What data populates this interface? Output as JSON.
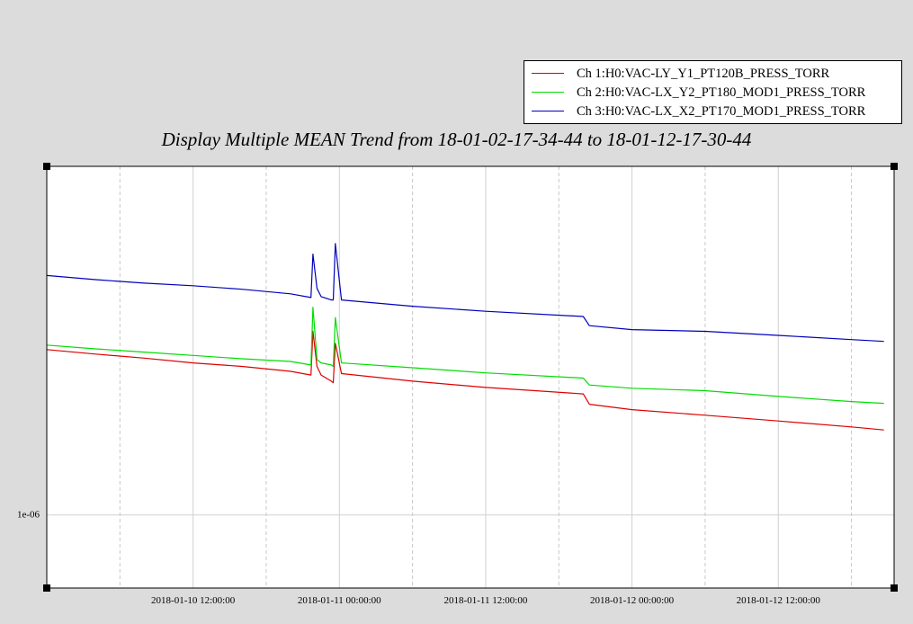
{
  "chart_data": {
    "type": "line",
    "title": "Display Multiple MEAN Trend from 18-01-02-17-34-44 to 18-01-12-17-30-44",
    "xlabel": "",
    "ylabel": "",
    "x_ticks": [
      "2018-01-10 12:00:00",
      "2018-01-11 00:00:00",
      "2018-01-11 12:00:00",
      "2018-01-12 00:00:00",
      "2018-01-12 12:00:00"
    ],
    "xlim": [
      "2018-01-10 00:00:00",
      "2018-01-12 21:30:00"
    ],
    "y_scale": "log",
    "y_ticks": [
      "1e-06"
    ],
    "ylim": [
      6.5e-07,
      7.8e-06
    ],
    "grid": true,
    "legend_position": "top-right",
    "series": [
      {
        "name": "Ch 1:H0:VAC-LY_Y1_PT120B_PRESS_TORR",
        "color": "#dd0000",
        "points": [
          [
            "2018-01-10 00:00:00",
            2.65e-06
          ],
          [
            "2018-01-10 04:00:00",
            2.58e-06
          ],
          [
            "2018-01-10 08:00:00",
            2.52e-06
          ],
          [
            "2018-01-10 12:00:00",
            2.45e-06
          ],
          [
            "2018-01-10 16:00:00",
            2.4e-06
          ],
          [
            "2018-01-10 20:00:00",
            2.33e-06
          ],
          [
            "2018-01-10 21:40:00",
            2.28e-06
          ],
          [
            "2018-01-10 21:50:00",
            2.95e-06
          ],
          [
            "2018-01-10 22:10:00",
            2.4e-06
          ],
          [
            "2018-01-10 22:30:00",
            2.28e-06
          ],
          [
            "2018-01-10 23:20:00",
            2.2e-06
          ],
          [
            "2018-01-10 23:30:00",
            2.18e-06
          ],
          [
            "2018-01-10 23:40:00",
            2.75e-06
          ],
          [
            "2018-01-11 00:10:00",
            2.3e-06
          ],
          [
            "2018-01-11 06:00:00",
            2.2e-06
          ],
          [
            "2018-01-11 12:00:00",
            2.12e-06
          ],
          [
            "2018-01-11 20:00:00",
            2.04e-06
          ],
          [
            "2018-01-11 20:30:00",
            1.92e-06
          ],
          [
            "2018-01-12 00:00:00",
            1.86e-06
          ],
          [
            "2018-01-12 06:00:00",
            1.8e-06
          ],
          [
            "2018-01-12 12:00:00",
            1.74e-06
          ],
          [
            "2018-01-12 18:00:00",
            1.68e-06
          ],
          [
            "2018-01-12 20:40:00",
            1.65e-06
          ]
        ]
      },
      {
        "name": "Ch 2:H0:VAC-LX_Y2_PT180_MOD1_PRESS_TORR",
        "color": "#00dd00",
        "points": [
          [
            "2018-01-10 00:00:00",
            2.72e-06
          ],
          [
            "2018-01-10 04:00:00",
            2.66e-06
          ],
          [
            "2018-01-10 08:00:00",
            2.61e-06
          ],
          [
            "2018-01-10 12:00:00",
            2.56e-06
          ],
          [
            "2018-01-10 16:00:00",
            2.51e-06
          ],
          [
            "2018-01-10 20:00:00",
            2.47e-06
          ],
          [
            "2018-01-10 21:40:00",
            2.42e-06
          ],
          [
            "2018-01-10 21:50:00",
            3.4e-06
          ],
          [
            "2018-01-10 22:10:00",
            2.5e-06
          ],
          [
            "2018-01-10 22:30:00",
            2.45e-06
          ],
          [
            "2018-01-10 23:20:00",
            2.42e-06
          ],
          [
            "2018-01-10 23:30:00",
            2.4e-06
          ],
          [
            "2018-01-10 23:40:00",
            3.2e-06
          ],
          [
            "2018-01-11 00:10:00",
            2.45e-06
          ],
          [
            "2018-01-11 06:00:00",
            2.38e-06
          ],
          [
            "2018-01-11 12:00:00",
            2.31e-06
          ],
          [
            "2018-01-11 20:00:00",
            2.24e-06
          ],
          [
            "2018-01-11 20:30:00",
            2.15e-06
          ],
          [
            "2018-01-12 00:00:00",
            2.11e-06
          ],
          [
            "2018-01-12 06:00:00",
            2.08e-06
          ],
          [
            "2018-01-12 12:00:00",
            2.01e-06
          ],
          [
            "2018-01-12 18:00:00",
            1.95e-06
          ],
          [
            "2018-01-12 20:40:00",
            1.93e-06
          ]
        ]
      },
      {
        "name": "Ch 3:H0:VAC-LX_X2_PT170_MOD1_PRESS_TORR",
        "color": "#0000bb",
        "points": [
          [
            "2018-01-10 00:00:00",
            4.1e-06
          ],
          [
            "2018-01-10 04:00:00",
            4e-06
          ],
          [
            "2018-01-10 08:00:00",
            3.92e-06
          ],
          [
            "2018-01-10 12:00:00",
            3.86e-06
          ],
          [
            "2018-01-10 16:00:00",
            3.78e-06
          ],
          [
            "2018-01-10 20:00:00",
            3.68e-06
          ],
          [
            "2018-01-10 21:40:00",
            3.6e-06
          ],
          [
            "2018-01-10 21:50:00",
            4.65e-06
          ],
          [
            "2018-01-10 22:10:00",
            3.8e-06
          ],
          [
            "2018-01-10 22:30:00",
            3.62e-06
          ],
          [
            "2018-01-10 23:20:00",
            3.55e-06
          ],
          [
            "2018-01-10 23:30:00",
            3.55e-06
          ],
          [
            "2018-01-10 23:40:00",
            4.95e-06
          ],
          [
            "2018-01-11 00:10:00",
            3.55e-06
          ],
          [
            "2018-01-11 06:00:00",
            3.42e-06
          ],
          [
            "2018-01-11 12:00:00",
            3.32e-06
          ],
          [
            "2018-01-11 20:00:00",
            3.22e-06
          ],
          [
            "2018-01-11 20:30:00",
            3.05e-06
          ],
          [
            "2018-01-12 00:00:00",
            2.98e-06
          ],
          [
            "2018-01-12 06:00:00",
            2.95e-06
          ],
          [
            "2018-01-12 12:00:00",
            2.88e-06
          ],
          [
            "2018-01-12 18:00:00",
            2.81e-06
          ],
          [
            "2018-01-12 20:40:00",
            2.78e-06
          ]
        ]
      }
    ]
  }
}
